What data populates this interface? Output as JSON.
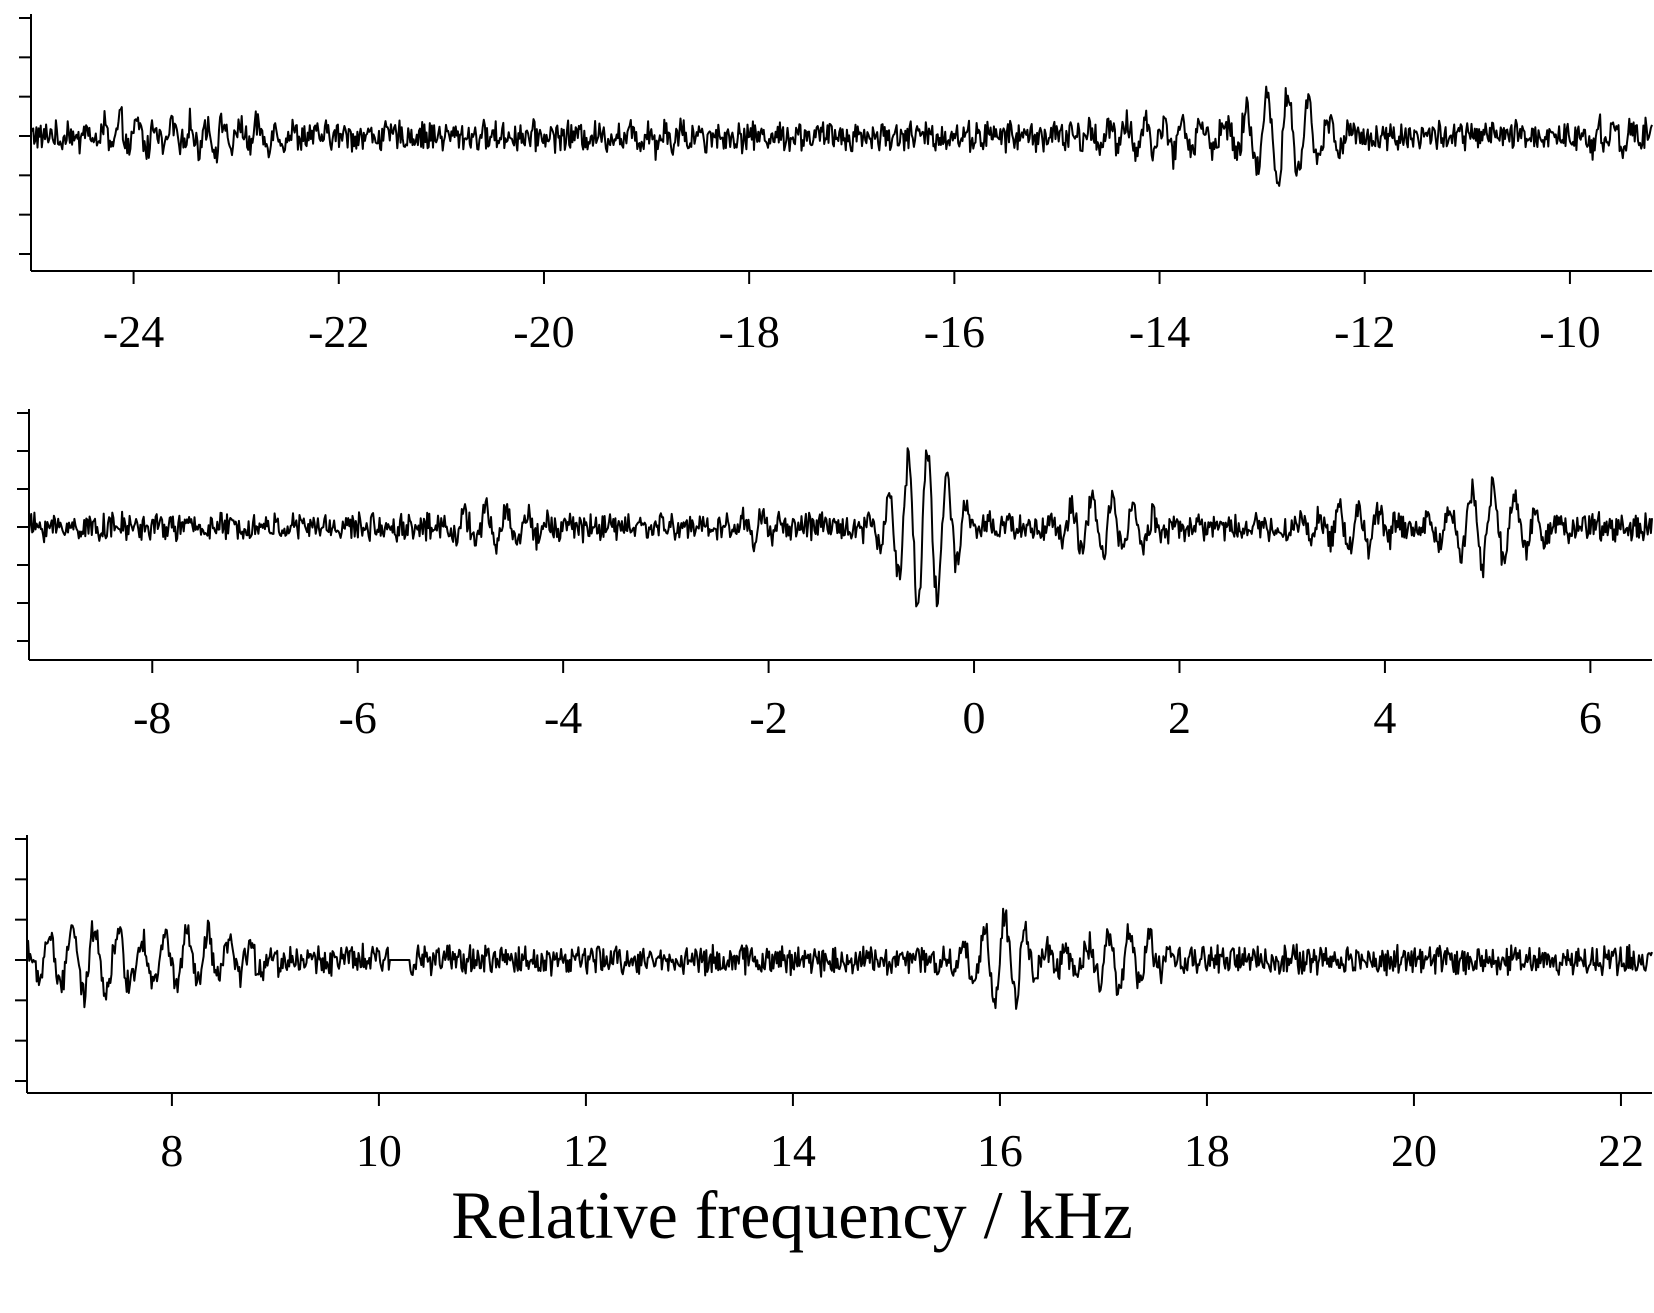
{
  "chart_data": [
    {
      "type": "line",
      "panel": "top",
      "x_ticks": [
        -24,
        -22,
        -20,
        -18,
        -16,
        -14,
        -12,
        -10
      ],
      "x_tick_labels": [
        "-24",
        "-22",
        "-20",
        "-18",
        "-16",
        "-14",
        "-12",
        "-10"
      ],
      "xlim": [
        -25,
        -9.2
      ],
      "y_tick_count": 7,
      "baseline_noise": 0.32,
      "features": [
        {
          "center": -24.0,
          "width": 0.7,
          "amplitude": 0.35,
          "period": 0.17
        },
        {
          "center": -23.0,
          "width": 0.5,
          "amplitude": 0.3,
          "period": 0.17
        },
        {
          "center": -18.7,
          "width": 0.4,
          "amplitude": 0.3,
          "period": 0.16
        },
        {
          "center": -14.0,
          "width": 0.6,
          "amplitude": 0.45,
          "period": 0.18
        },
        {
          "center": -12.8,
          "width": 0.5,
          "amplitude": 1.15,
          "period": 0.2
        },
        {
          "center": -9.6,
          "width": 0.3,
          "amplitude": 0.35,
          "period": 0.16
        }
      ]
    },
    {
      "type": "line",
      "panel": "middle",
      "x_ticks": [
        -8,
        -6,
        -4,
        -2,
        0,
        2,
        4,
        6
      ],
      "x_tick_labels": [
        "-8",
        "-6",
        "-4",
        "-2",
        "0",
        "2",
        "4",
        "6"
      ],
      "xlim": [
        -9.2,
        6.6
      ],
      "y_tick_count": 7,
      "baseline_noise": 0.3,
      "features": [
        {
          "center": -4.6,
          "width": 0.5,
          "amplitude": 0.45,
          "period": 0.2
        },
        {
          "center": -2.1,
          "width": 0.3,
          "amplitude": 0.35,
          "period": 0.18
        },
        {
          "center": -0.5,
          "width": 0.35,
          "amplitude": 2.1,
          "period": 0.19
        },
        {
          "center": 1.3,
          "width": 0.5,
          "amplitude": 0.7,
          "period": 0.2
        },
        {
          "center": 3.7,
          "width": 0.4,
          "amplitude": 0.5,
          "period": 0.19
        },
        {
          "center": 5.0,
          "width": 0.55,
          "amplitude": 1.0,
          "period": 0.21
        }
      ]
    },
    {
      "type": "line",
      "panel": "bottom",
      "x_ticks": [
        8,
        10,
        12,
        14,
        16,
        18,
        20,
        22
      ],
      "x_tick_labels": [
        "8",
        "10",
        "12",
        "14",
        "16",
        "18",
        "20",
        "22"
      ],
      "xlim": [
        6.6,
        22.3
      ],
      "y_tick_count": 7,
      "baseline_noise": 0.3,
      "gap": [
        10.1,
        10.3
      ],
      "features": [
        {
          "center": 7.2,
          "width": 0.6,
          "amplitude": 0.95,
          "period": 0.22
        },
        {
          "center": 8.3,
          "width": 0.6,
          "amplitude": 0.6,
          "period": 0.2
        },
        {
          "center": 16.0,
          "width": 0.35,
          "amplitude": 1.1,
          "period": 0.2
        },
        {
          "center": 17.2,
          "width": 0.35,
          "amplitude": 0.85,
          "period": 0.2
        }
      ]
    }
  ],
  "xlabel": "Relative frequency / kHz"
}
